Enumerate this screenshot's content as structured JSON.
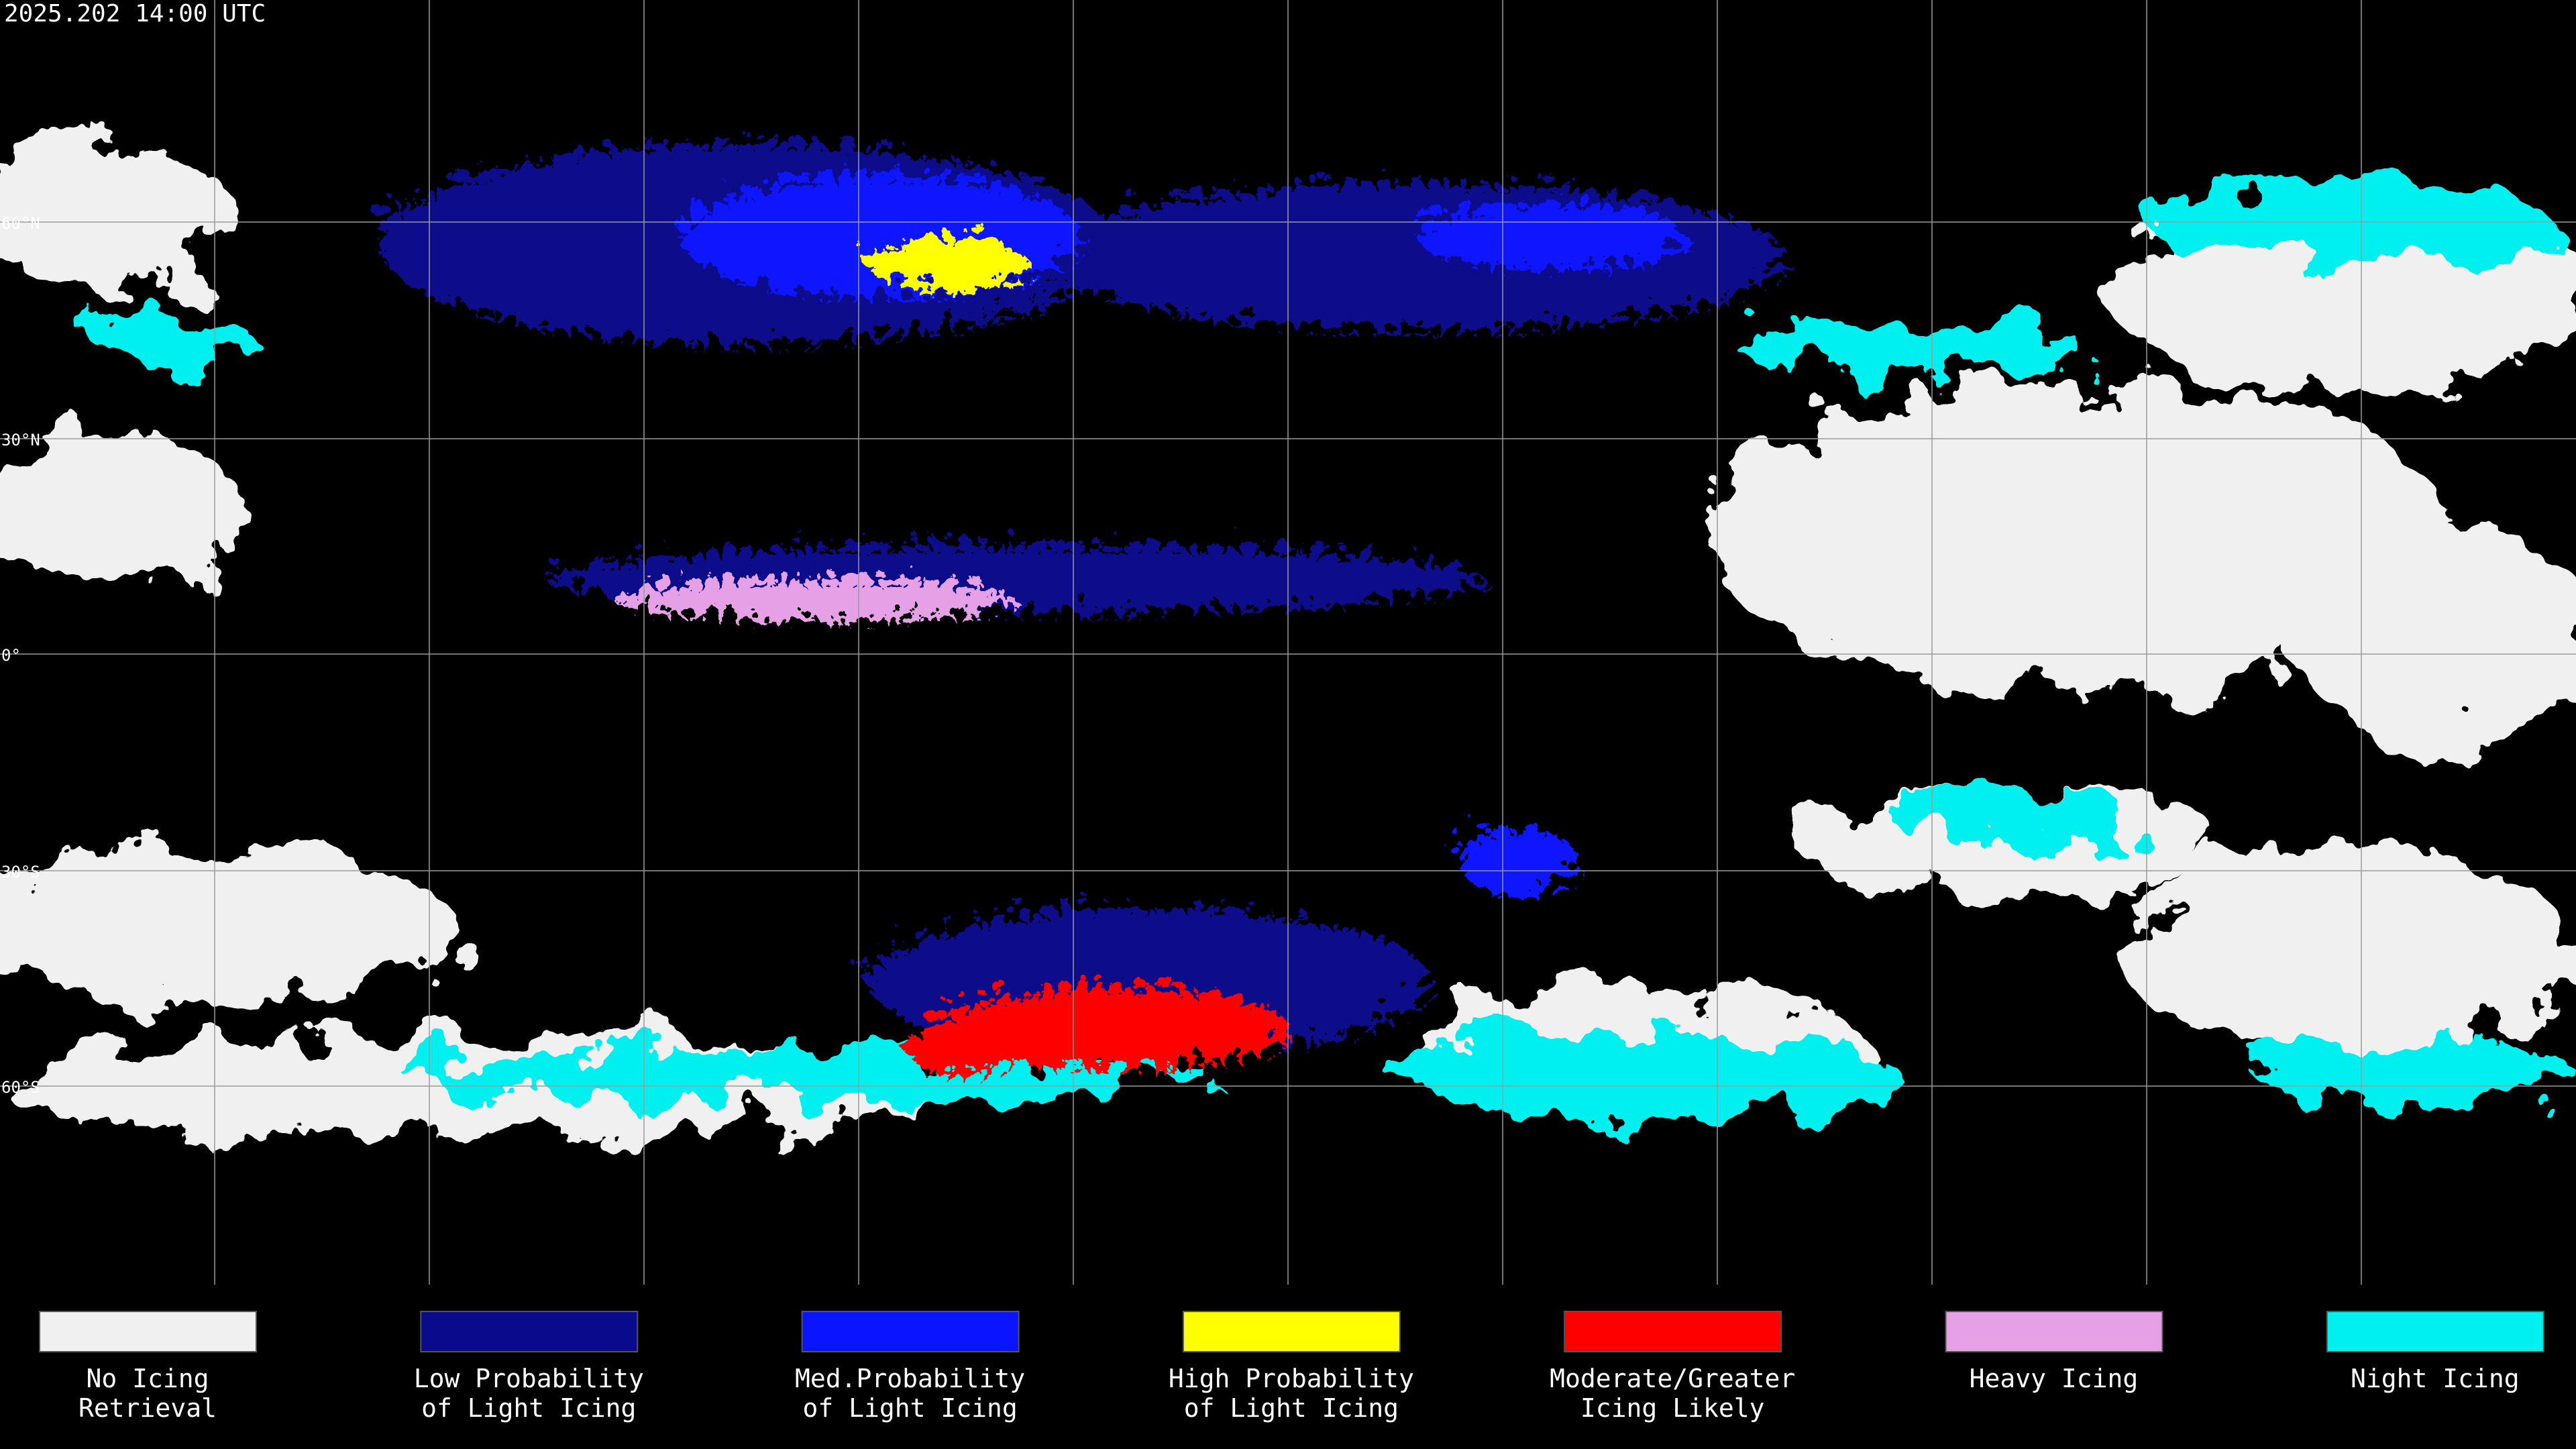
{
  "header": {
    "title": "2025.202 14:00 UTC"
  },
  "map": {
    "latitude_labels": [
      "60°N",
      "30°N",
      "0°",
      "30°S",
      "60°S"
    ]
  },
  "legend": {
    "items": [
      {
        "label_lines": [
          "No Icing",
          "Retrieval"
        ],
        "color": "#f0f0f0"
      },
      {
        "label_lines": [
          "Low Probability",
          "of Light Icing"
        ],
        "color": "#0a0a8c"
      },
      {
        "label_lines": [
          "Med.Probability",
          "of Light Icing"
        ],
        "color": "#0a14ff"
      },
      {
        "label_lines": [
          "High Probability",
          "of Light Icing"
        ],
        "color": "#ffff00"
      },
      {
        "label_lines": [
          "Moderate/Greater",
          "Icing Likely"
        ],
        "color": "#ff0000"
      },
      {
        "label_lines": [
          "Heavy Icing"
        ],
        "color": "#e6a0e6"
      },
      {
        "label_lines": [
          "Night Icing"
        ],
        "color": "#00f0f0"
      }
    ]
  }
}
